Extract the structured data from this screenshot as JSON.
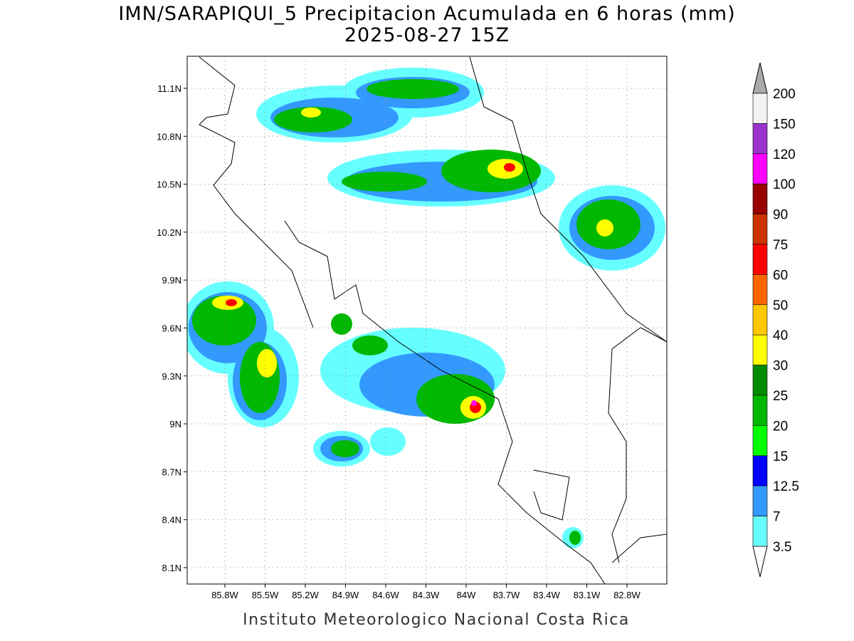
{
  "title": "IMN/SARAPIQUI_5 Precipitacion Acumulada en 6 horas (mm)",
  "subtitle": "2025-08-27 15Z",
  "lat_labels": [
    "11.1N",
    "10.8N",
    "10.5N",
    "10.2N",
    "9.9N",
    "9.6N",
    "9.3N",
    "9N",
    "8.7N",
    "8.4N",
    "8.1N"
  ],
  "lon_labels": [
    "85.8W",
    "85.5W",
    "85.2W",
    "84.9W",
    "84.6W",
    "84.3W",
    "84W",
    "83.7W",
    "83.4W",
    "83.1W",
    "82.8W"
  ],
  "colorbar": {
    "labels": [
      "200",
      "150",
      "120",
      "100",
      "90",
      "75",
      "60",
      "50",
      "40",
      "30",
      "25",
      "20",
      "15",
      "12.5",
      "7",
      "3.5"
    ],
    "colors": [
      "#f2f2f2",
      "#9933cc",
      "#ff00ff",
      "#990000",
      "#cc3300",
      "#ff0000",
      "#ff6600",
      "#ffc800",
      "#ffff00",
      "#008c00",
      "#00b800",
      "#00ff00",
      "#0000ff",
      "#3399ff",
      "#66ffff"
    ],
    "over_color": "#aaaaaa",
    "under_color": "#ffffff"
  },
  "footer": "Instituto Meteorologico Nacional Costa Rica"
}
